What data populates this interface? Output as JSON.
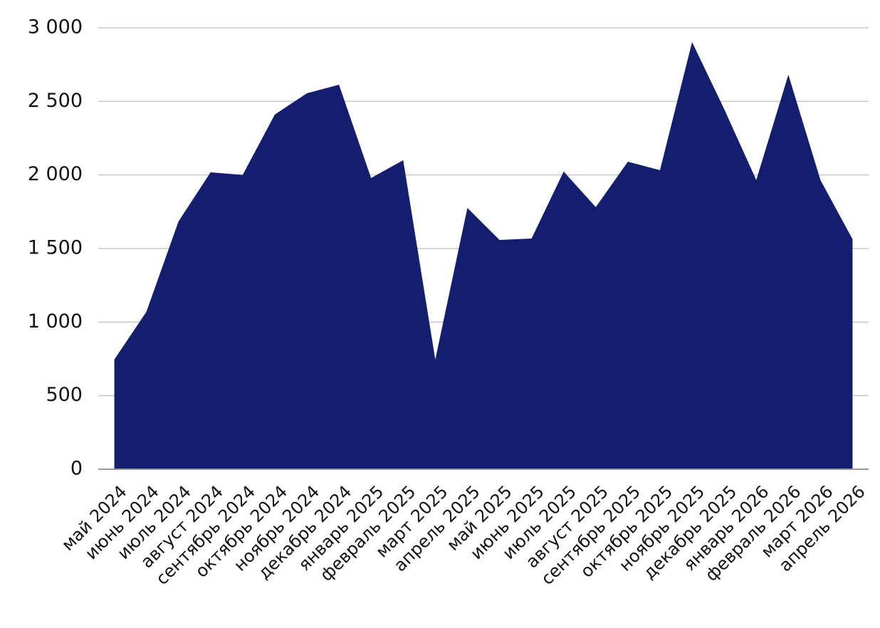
{
  "chart_data": {
    "type": "area",
    "categories": [
      "май 2024",
      "июнь 2024",
      "июль 2024",
      "август 2024",
      "сентябрь 2024",
      "октябрь 2024",
      "ноябрь 2024",
      "декабрь 2024",
      "январь 2025",
      "февраль 2025",
      "март 2025",
      "апрель 2025",
      "май 2025",
      "июнь 2025",
      "июль 2025",
      "август 2025",
      "сентябрь 2025",
      "октябрь 2025",
      "ноябрь 2025",
      "декабрь 2025",
      "январь 2026",
      "февраль 2026",
      "март 2026",
      "апрель 2026"
    ],
    "values": [
      745,
      1070,
      1684,
      2018,
      2000,
      2410,
      2555,
      2613,
      1979,
      2100,
      745,
      1776,
      1558,
      1568,
      2023,
      1781,
      2090,
      2032,
      2903,
      2448,
      1965,
      2681,
      1965,
      1563
    ],
    "color": "#131f6e",
    "ylim": [
      0,
      3000
    ],
    "yticks": [
      0,
      500,
      {
        "value": 1000,
        "label": "1 000"
      },
      {
        "value": 1500,
        "label": "1 500"
      },
      {
        "value": 2000,
        "label": "2 000"
      },
      {
        "value": 2500,
        "label": "2 500"
      },
      {
        "value": 3000,
        "label": "3 000"
      }
    ],
    "grid": true
  }
}
